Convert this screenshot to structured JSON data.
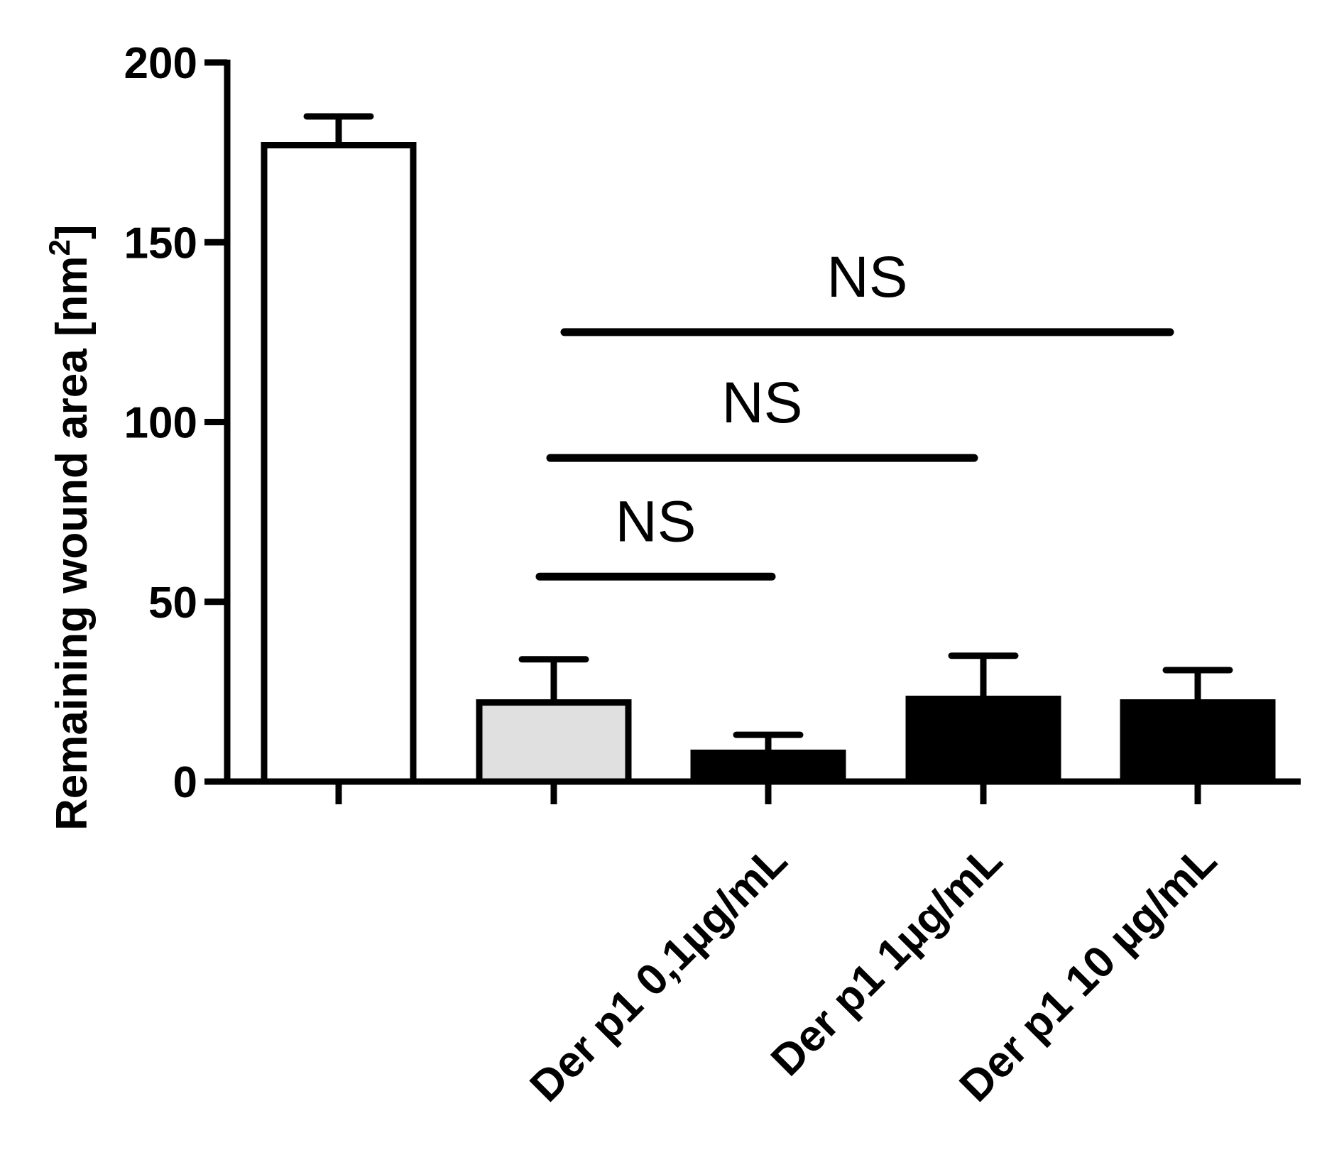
{
  "chart_data": {
    "type": "bar",
    "categories": [
      "",
      "",
      "Der p1 0,1µg/mL",
      "Der p1 1µg/mL",
      "Der p1 10 µg/mL"
    ],
    "values": [
      177,
      22,
      8,
      23,
      22
    ],
    "error_upper": [
      185,
      34,
      13,
      35,
      31
    ],
    "bar_fill": [
      "#ffffff",
      "#e0e0e0",
      "#000000",
      "#000000",
      "#000000"
    ],
    "ylabel": "Remaining wound area [nm",
    "ylabel_superscript": "2",
    "ylabel_suffix": "]",
    "ylim": [
      0,
      200
    ],
    "yticks": [
      "0",
      "50",
      "100",
      "150",
      "200"
    ],
    "ytick_values": [
      0,
      50,
      100,
      150,
      200
    ],
    "comparisons": [
      {
        "from": 1,
        "to": 2,
        "y": 57,
        "label": "NS"
      },
      {
        "from": 1,
        "to": 3,
        "y": 90,
        "label": "NS"
      },
      {
        "from": 1,
        "to": 4,
        "y": 125,
        "label": "NS"
      }
    ],
    "grid": false,
    "legend": "none"
  }
}
